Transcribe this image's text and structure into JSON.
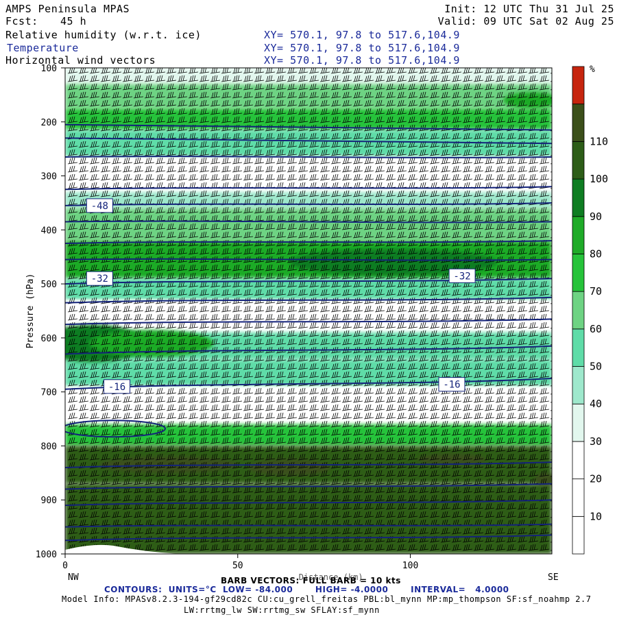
{
  "header": {
    "model_title": "AMPS Peninsula MPAS",
    "forecast_label": "Fcst:",
    "forecast_hours": "45 h",
    "init_label": "Init: 12 UTC Thu 31 Jul 25",
    "valid_label": "Valid: 09 UTC Sat 02 Aug 25",
    "fields": [
      {
        "name": "Relative humidity (w.r.t. ice)",
        "xy": "XY= 570.1, 97.8 to 517.6,104.9",
        "color": "#000000"
      },
      {
        "name": "Temperature",
        "xy": "XY= 570.1, 97.8 to 517.6,104.9",
        "color": "#1a2a9a"
      },
      {
        "name": "Horizontal wind vectors",
        "xy": "XY= 570.1, 97.8 to 517.6,104.9",
        "color": "#000000"
      }
    ]
  },
  "footer": {
    "barb_note": "BARB VECTORS: FULL BARB = 10 kts",
    "contour_info": "CONTOURS:  UNITS=°C  LOW= -84.000       HIGH= -4.0000       INTERVAL=   4.0000",
    "model_info_1": "Model Info: MPASv8.2.3-194-gf29cd82c CU:cu_grell_freitas PBL:bl_mynn MP:mp_thompson SF:sf_noahmp 2.7",
    "model_info_2": "LW:rrtmg_lw SW:rrtmg_sw SFLAY:sf_mynn"
  },
  "chart_data": {
    "type": "heatmap",
    "title": "Relative humidity (w.r.t. ice)",
    "xlabel": "Distance (km)",
    "ylabel": "Pressure (hPa)",
    "x_ticks": [
      0,
      50,
      100
    ],
    "x_end_labels": {
      "left": "NW",
      "right": "SE"
    },
    "xlim": [
      0,
      141
    ],
    "y_ticks": [
      100,
      200,
      300,
      400,
      500,
      600,
      700,
      800,
      900,
      1000
    ],
    "ylim": [
      1000,
      100
    ],
    "y_scale": "linear, inverted",
    "colorbar": {
      "unit": "%",
      "tick_labels": [
        10,
        20,
        30,
        40,
        50,
        60,
        70,
        80,
        90,
        100,
        110
      ],
      "bounds": [
        0,
        10,
        20,
        30,
        40,
        50,
        60,
        70,
        80,
        90,
        100,
        110,
        120
      ],
      "colors": [
        "#ffffff",
        "#ffffff",
        "#ffffff",
        "#e2f7ee",
        "#9ee8cc",
        "#5fdca8",
        "#6ed383",
        "#26c33a",
        "#1fab28",
        "#0e7d22",
        "#2d5d18",
        "#3b4f1a",
        "#c6250e"
      ]
    },
    "humidity_bands": [
      {
        "p_top": 100,
        "p_bot": 130,
        "rh": 30
      },
      {
        "p_top": 130,
        "p_bot": 175,
        "rh": 65
      },
      {
        "p_top": 175,
        "p_bot": 215,
        "rh": 75
      },
      {
        "p_top": 215,
        "p_bot": 265,
        "rh": 55
      },
      {
        "p_top": 265,
        "p_bot": 330,
        "rh": 20
      },
      {
        "p_top": 330,
        "p_bot": 360,
        "rh": 40
      },
      {
        "p_top": 360,
        "p_bot": 420,
        "rh": 65
      },
      {
        "p_top": 420,
        "p_bot": 490,
        "rh": 80
      },
      {
        "p_top": 490,
        "p_bot": 530,
        "rh": 55
      },
      {
        "p_top": 530,
        "p_bot": 590,
        "rh": 15
      },
      {
        "p_top": 590,
        "p_bot": 640,
        "rh": 55
      },
      {
        "p_top": 640,
        "p_bot": 690,
        "rh": 50
      },
      {
        "p_top": 690,
        "p_bot": 760,
        "rh": 15
      },
      {
        "p_top": 760,
        "p_bot": 800,
        "rh": 75
      },
      {
        "p_top": 800,
        "p_bot": 870,
        "rh": 108
      },
      {
        "p_top": 870,
        "p_bot": 1000,
        "rh": 105
      }
    ],
    "humidity_blobs": [
      {
        "x": 95,
        "p": 460,
        "rx": 30,
        "rp": 25,
        "rh": 92
      },
      {
        "x": 8,
        "p": 610,
        "rx": 15,
        "rp": 35,
        "rh": 98
      },
      {
        "x": 25,
        "p": 610,
        "rx": 18,
        "rp": 25,
        "rh": 88
      },
      {
        "x": 30,
        "p": 835,
        "rx": 20,
        "rp": 15,
        "rh": 118
      },
      {
        "x": 65,
        "p": 840,
        "rx": 12,
        "rp": 15,
        "rh": 118
      },
      {
        "x": 112,
        "p": 825,
        "rx": 10,
        "rp": 10,
        "rh": 118
      },
      {
        "x": 139,
        "p": 862,
        "rx": 3,
        "rp": 12,
        "rh": 118
      },
      {
        "x": 135,
        "p": 160,
        "rx": 8,
        "rp": 15,
        "rh": 85
      }
    ],
    "temperature_contours": [
      {
        "p_left": 205,
        "p_right": 215
      },
      {
        "p_left": 230,
        "p_right": 240
      },
      {
        "p_left": 265,
        "p_right": 265
      },
      {
        "p_left": 325,
        "p_right": 320
      },
      {
        "p_left": 355,
        "p_right": 350
      },
      {
        "p_left": 385,
        "p_right": 385
      },
      {
        "p_left": 425,
        "p_right": 420
      },
      {
        "p_left": 455,
        "p_right": 455
      },
      {
        "p_left": 500,
        "p_right": 490
      },
      {
        "p_left": 535,
        "p_right": 525
      },
      {
        "p_left": 575,
        "p_right": 565
      },
      {
        "p_left": 630,
        "p_right": 615
      },
      {
        "p_left": 695,
        "p_right": 675
      },
      {
        "p_left": 840,
        "p_right": 830
      },
      {
        "p_left": 880,
        "p_right": 870
      },
      {
        "p_left": 910,
        "p_right": 900
      },
      {
        "p_left": 950,
        "p_right": 945
      },
      {
        "p_left": 975,
        "p_right": 965
      }
    ],
    "contour_labels": [
      {
        "text": "-48",
        "x": 10,
        "p": 355
      },
      {
        "text": "-32",
        "x": 10,
        "p": 490
      },
      {
        "text": "-32",
        "x": 115,
        "p": 485
      },
      {
        "text": "-16",
        "x": 15,
        "p": 690
      },
      {
        "text": "-16",
        "x": 112,
        "p": 686
      }
    ]
  }
}
